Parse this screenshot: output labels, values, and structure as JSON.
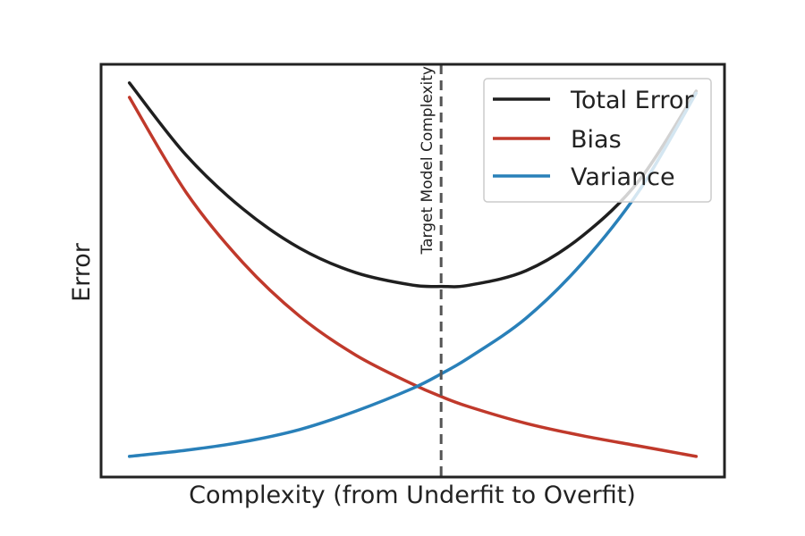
{
  "chart_data": {
    "type": "line",
    "xlabel": "Complexity (from Underfit to Overfit)",
    "ylabel": "Error",
    "x_ticks_shown": false,
    "y_ticks_shown": false,
    "grid": false,
    "legend_position": "top-right",
    "xlim": [
      -0.05,
      1.05
    ],
    "ylim": [
      0,
      1.0
    ],
    "x": [
      0.0,
      0.1,
      0.2,
      0.3,
      0.4,
      0.5,
      0.55,
      0.6,
      0.7,
      0.8,
      0.9,
      1.0
    ],
    "series": [
      {
        "name": "Total Error",
        "color": "#1f1f1f",
        "values": [
          0.955,
          0.78,
          0.65,
          0.555,
          0.495,
          0.465,
          0.462,
          0.465,
          0.5,
          0.585,
          0.72,
          0.935
        ]
      },
      {
        "name": "Bias",
        "color": "#c0392b",
        "values": [
          0.92,
          0.69,
          0.52,
          0.39,
          0.295,
          0.225,
          0.195,
          0.17,
          0.13,
          0.1,
          0.075,
          0.05
        ]
      },
      {
        "name": "Variance",
        "color": "#2980b9",
        "values": [
          0.05,
          0.065,
          0.085,
          0.115,
          0.16,
          0.215,
          0.25,
          0.29,
          0.385,
          0.52,
          0.695,
          0.93
        ]
      }
    ],
    "annotations": [
      {
        "type": "vertical-dashed-line",
        "x": 0.55,
        "label": "Target Model Complexity",
        "color": "#555555"
      }
    ]
  }
}
